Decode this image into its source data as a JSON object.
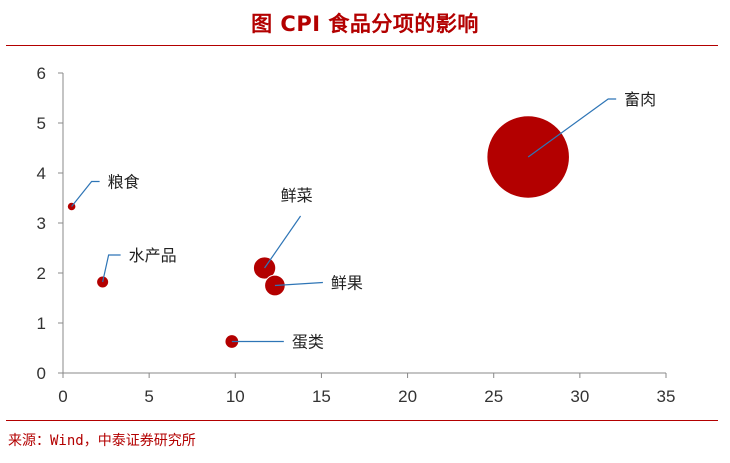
{
  "title": "图  CPI 食品分项的影响",
  "source": "来源：Wind，中泰证券研究所",
  "chart_data": {
    "type": "scatter",
    "subtype": "bubble",
    "title": "图  CPI 食品分项的影响",
    "xlim": [
      0,
      35
    ],
    "ylim": [
      0,
      6
    ],
    "x_ticks": [
      0,
      5,
      10,
      15,
      20,
      25,
      30,
      35
    ],
    "y_ticks": [
      0,
      1,
      2,
      3,
      4,
      5,
      6
    ],
    "grid": false,
    "legend": "none",
    "color": "#b30000",
    "points": [
      {
        "label": "畜肉",
        "x": 27.0,
        "y": 4.32,
        "size": 24
      },
      {
        "label": "粮食",
        "x": 0.5,
        "y": 3.33,
        "size": 2.5
      },
      {
        "label": "鲜菜",
        "x": 11.7,
        "y": 2.1,
        "size": 6.5
      },
      {
        "label": "鲜果",
        "x": 12.3,
        "y": 1.75,
        "size": 6
      },
      {
        "label": "水产品",
        "x": 2.3,
        "y": 1.82,
        "size": 3.5
      },
      {
        "label": "蛋类",
        "x": 9.8,
        "y": 0.63,
        "size": 4
      }
    ]
  }
}
